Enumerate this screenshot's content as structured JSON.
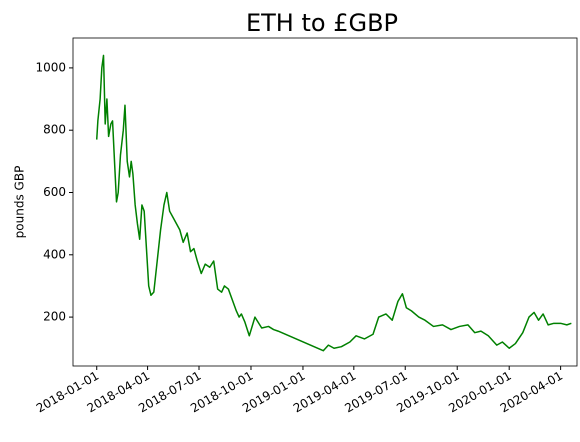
{
  "chart_data": {
    "type": "line",
    "title": "ETH to £GBP",
    "ylabel": "pounds GBP",
    "x": [
      "2018-01-01",
      "2018-01-03",
      "2018-01-07",
      "2018-01-10",
      "2018-01-13",
      "2018-01-16",
      "2018-01-19",
      "2018-01-22",
      "2018-01-26",
      "2018-01-29",
      "2018-02-02",
      "2018-02-05",
      "2018-02-08",
      "2018-02-12",
      "2018-02-17",
      "2018-02-20",
      "2018-02-24",
      "2018-02-28",
      "2018-03-03",
      "2018-03-06",
      "2018-03-10",
      "2018-03-14",
      "2018-03-18",
      "2018-03-22",
      "2018-03-26",
      "2018-03-30",
      "2018-04-03",
      "2018-04-07",
      "2018-04-12",
      "2018-04-18",
      "2018-04-24",
      "2018-04-30",
      "2018-05-05",
      "2018-05-10",
      "2018-05-16",
      "2018-05-22",
      "2018-05-28",
      "2018-06-03",
      "2018-06-10",
      "2018-06-16",
      "2018-06-22",
      "2018-06-28",
      "2018-07-05",
      "2018-07-12",
      "2018-07-20",
      "2018-07-27",
      "2018-08-03",
      "2018-08-10",
      "2018-08-15",
      "2018-08-22",
      "2018-08-30",
      "2018-09-05",
      "2018-09-10",
      "2018-09-14",
      "2018-09-20",
      "2018-09-28",
      "2018-10-08",
      "2018-10-20",
      "2018-11-01",
      "2018-11-10",
      "2018-11-18",
      "2019-02-06",
      "2019-02-15",
      "2019-02-25",
      "2019-03-10",
      "2019-03-25",
      "2019-04-05",
      "2019-04-20",
      "2019-05-05",
      "2019-05-15",
      "2019-05-28",
      "2019-06-08",
      "2019-06-18",
      "2019-06-26",
      "2019-07-03",
      "2019-07-12",
      "2019-07-25",
      "2019-08-05",
      "2019-08-20",
      "2019-09-05",
      "2019-09-20",
      "2019-10-05",
      "2019-10-20",
      "2019-11-01",
      "2019-11-12",
      "2019-11-25",
      "2019-12-10",
      "2019-12-20",
      "2020-01-01",
      "2020-01-12",
      "2020-01-25",
      "2020-02-05",
      "2020-02-14",
      "2020-02-22",
      "2020-03-01",
      "2020-03-10",
      "2020-03-20",
      "2020-04-01",
      "2020-04-12",
      "2020-04-20"
    ],
    "series": [
      {
        "name": "ETH",
        "color": "#008000",
        "values": [
          770,
          830,
          900,
          1000,
          1040,
          820,
          900,
          780,
          820,
          830,
          680,
          570,
          600,
          720,
          800,
          880,
          700,
          650,
          700,
          660,
          560,
          500,
          450,
          560,
          540,
          420,
          300,
          270,
          280,
          380,
          480,
          560,
          600,
          540,
          520,
          500,
          480,
          440,
          470,
          410,
          420,
          380,
          340,
          370,
          360,
          380,
          290,
          280,
          300,
          290,
          250,
          220,
          200,
          210,
          185,
          140,
          200,
          165,
          170,
          160,
          155,
          92,
          110,
          100,
          105,
          120,
          140,
          130,
          145,
          200,
          210,
          190,
          250,
          275,
          230,
          220,
          200,
          190,
          170,
          175,
          160,
          170,
          175,
          150,
          155,
          140,
          110,
          120,
          100,
          115,
          150,
          200,
          215,
          190,
          210,
          175,
          180,
          180,
          175,
          180
        ]
      }
    ],
    "xlim": [
      "2017-11-20",
      "2020-04-30"
    ],
    "xticks": [
      "2018-01-01",
      "2018-04-01",
      "2018-07-01",
      "2018-10-01",
      "2019-01-01",
      "2019-04-01",
      "2019-07-01",
      "2019-10-01",
      "2020-01-01",
      "2020-04-01"
    ],
    "ylim": [
      43,
      1096
    ],
    "yticks": [
      200,
      400,
      600,
      800,
      1000
    ]
  }
}
